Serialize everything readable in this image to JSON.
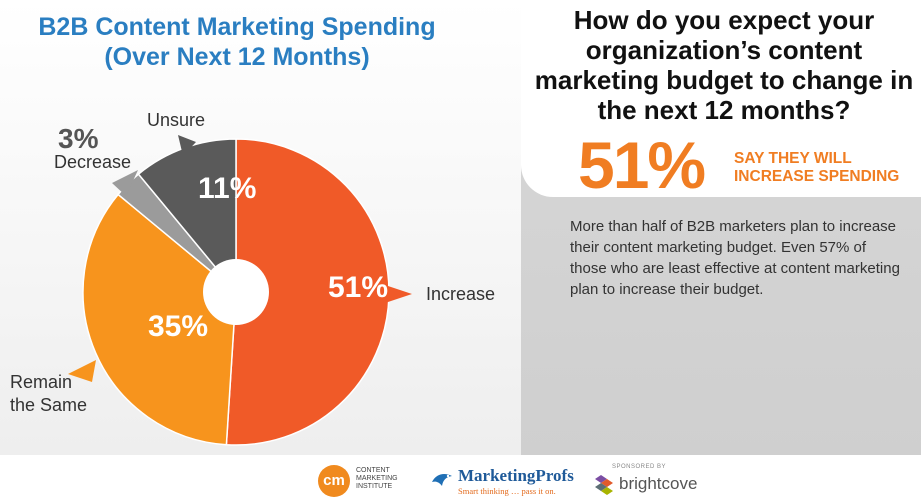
{
  "chart_data": {
    "type": "pie",
    "title": "B2B Content Marketing Spending\n(Over Next 12 Months)",
    "slices": [
      {
        "label": "Increase",
        "value": 51,
        "display": "51%",
        "color": "#f05a28"
      },
      {
        "label": "Remain\nthe Same",
        "value": 35,
        "display": "35%",
        "color": "#f7941d"
      },
      {
        "label": "Decrease",
        "value": 3,
        "display": "3%",
        "color": "#9b9b9b"
      },
      {
        "label": "Unsure",
        "value": 11,
        "display": "11%",
        "color": "#5a5a5a"
      }
    ]
  },
  "panel": {
    "question": "How do you expect your organization’s content marketing budget to change in the next 12 months?",
    "big_stat": "51%",
    "stat_caption": "SAY THEY WILL INCREASE SPENDING",
    "description": "More than half of B2B marketers plan to increase their content marketing budget. Even 57% of those who are least effective at content marketing plan to increase their budget."
  },
  "footer": {
    "cmi_mark": "cm",
    "cmi_text": "CONTENT MARKETING INSTITUTE",
    "mp_name": "MarketingProfs",
    "mp_tag": "Smart thinking … pass it on.",
    "sponsored": "SPONSORED BY",
    "brightcove": "brightcove"
  }
}
